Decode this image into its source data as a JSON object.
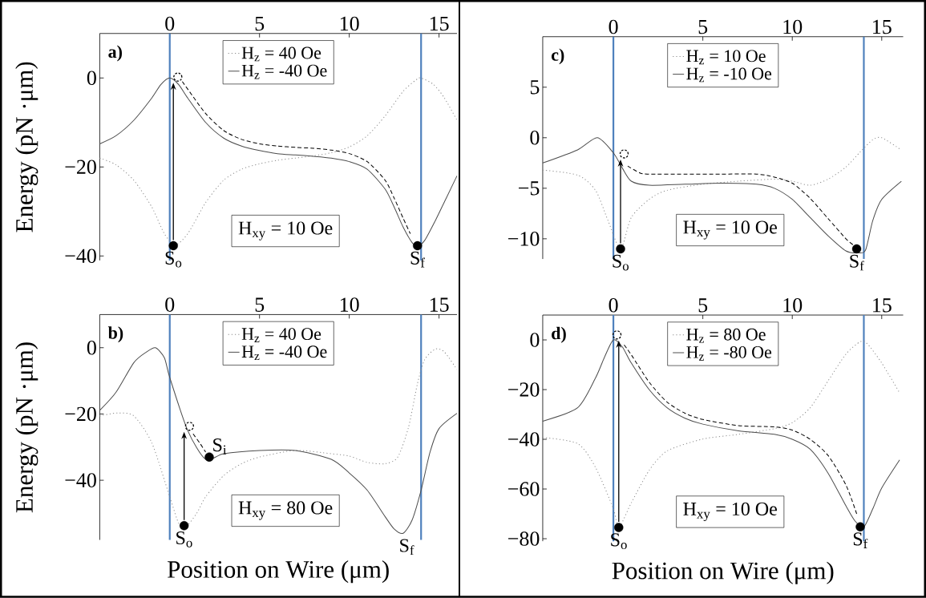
{
  "chart_data": [
    {
      "type": "line",
      "ylabel": "Energy (pN ·μm)",
      "legend": "top",
      "annotations": [
        "a)",
        "H$_{xy}$ = 10 Oe",
        {
          "text": "S$_{o}$",
          "x": 0.2,
          "y": -37.7
        },
        {
          "text": "S$_{f}$",
          "x": 13.8,
          "y": -37.7
        }
      ],
      "xlim": [
        -3.9,
        16
      ],
      "ylim": [
        -41,
        10
      ],
      "xticks": [
        0,
        5,
        10,
        15
      ],
      "yticks": [
        0,
        {
          "value": -20,
          "label": "−20"
        },
        {
          "value": -40,
          "label": "−40"
        }
      ],
      "ref_lines": [
        {
          "axis": "x",
          "value": 0,
          "color": "#4f81bd"
        },
        {
          "axis": "x",
          "value": 14,
          "color": "#4f81bd"
        }
      ],
      "series": [
        {
          "name": "H$_{z}$ = 40 Oe",
          "color": "#8c8c8c",
          "line_style": "dotted",
          "x": [
            -3.9,
            -3,
            -2,
            -1,
            -0.3,
            0.3,
            1,
            2,
            3,
            4,
            5,
            6,
            7,
            8,
            9,
            10,
            11,
            12,
            13,
            13.7,
            14,
            14.7,
            15.3,
            16
          ],
          "values": [
            -18,
            -19.5,
            -23,
            -29,
            -35,
            -37.5,
            -35,
            -28,
            -23,
            -20.5,
            -19.3,
            -18.5,
            -18,
            -17.5,
            -16.8,
            -15.5,
            -13,
            -8.5,
            -3,
            -0.5,
            0,
            -1.5,
            -4.5,
            -9.5
          ]
        },
        {
          "name": "H$_{z}$ = -40 Oe",
          "color": "#4d4d4d",
          "line_style": "solid",
          "x": [
            -3.9,
            -3,
            -2,
            -1,
            -0.5,
            0,
            0.5,
            1,
            2,
            3,
            4,
            5,
            6,
            7,
            8,
            9,
            10,
            11,
            12,
            12.5,
            13,
            13.5,
            13.8,
            14.2,
            14.8,
            15.4,
            16
          ],
          "values": [
            -14.8,
            -13,
            -9.5,
            -4.5,
            -1.5,
            0,
            -1.5,
            -4.5,
            -10,
            -13.5,
            -15.3,
            -16.3,
            -17,
            -17.3,
            -17.6,
            -18,
            -18.8,
            -20.5,
            -25,
            -29,
            -33.5,
            -37,
            -37.8,
            -36.5,
            -32,
            -27,
            -22
          ]
        },
        {
          "type": "scatter",
          "marker": "circle",
          "color": "#000000",
          "x": [
            0.2,
            13.8
          ],
          "values": [
            -37.7,
            -37.7
          ]
        },
        {
          "type": "scatter",
          "marker": "circle",
          "line_style": "dashed",
          "color": "#000000",
          "x": [
            0.45
          ],
          "values": [
            0.2
          ]
        },
        {
          "line_style": "dashed",
          "color": "#000000",
          "x": [
            0.7,
            1,
            2,
            3,
            4,
            5,
            6,
            7,
            8,
            9,
            10,
            11,
            12,
            12.5,
            13,
            13.4
          ],
          "values": [
            -0.8,
            -2.5,
            -8,
            -11.8,
            -13.8,
            -14.8,
            -15.3,
            -15.6,
            -15.8,
            -16.2,
            -17,
            -18.8,
            -23,
            -27,
            -31.5,
            -35
          ]
        }
      ]
    },
    {
      "type": "line",
      "legend": "top",
      "annotations": [
        "c)",
        "H$_{xy}$ = 10 Oe",
        {
          "text": "S$_{o}$",
          "x": 0.4,
          "y": -11
        },
        {
          "text": "S$_{f}$",
          "x": 13.6,
          "y": -11
        }
      ],
      "xlim": [
        -3.95,
        16.2
      ],
      "ylim": [
        -12,
        10
      ],
      "xticks": [
        0,
        5,
        10,
        15
      ],
      "yticks": [
        5,
        0,
        {
          "value": -5,
          "label": "−5"
        },
        {
          "value": -10,
          "label": "−10"
        }
      ],
      "ref_lines": [
        {
          "axis": "x",
          "value": 0,
          "color": "#4f81bd"
        },
        {
          "axis": "x",
          "value": 14,
          "color": "#4f81bd"
        }
      ],
      "series": [
        {
          "name": "H$_{z}$ = 10 Oe",
          "color": "#8c8c8c",
          "line_style": "dotted",
          "x": [
            -3.95,
            -2,
            -1,
            -0.3,
            0.4,
            1,
            2,
            3,
            5,
            7,
            9,
            10,
            11,
            12,
            13,
            13.8,
            14.5,
            15,
            16
          ],
          "values": [
            -3.2,
            -3.7,
            -5.2,
            -8.2,
            -11,
            -7.9,
            -6.1,
            -5.2,
            -4.6,
            -4.3,
            -4.1,
            -4.3,
            -4.7,
            -4.1,
            -2.9,
            -1.4,
            -0.2,
            0,
            -1.1
          ]
        },
        {
          "name": "H$_{z}$ = -10 Oe",
          "color": "#4d4d4d",
          "line_style": "solid",
          "x": [
            -3.95,
            -2,
            -0.9,
            0,
            0.5,
            1,
            2,
            4,
            6,
            8,
            9,
            10,
            11,
            12,
            13,
            13.7,
            14.1,
            14.5,
            15,
            16.1
          ],
          "values": [
            -2.5,
            -1.2,
            0,
            -1.5,
            -3,
            -4.3,
            -4.7,
            -4.6,
            -4.5,
            -4.6,
            -5,
            -6.1,
            -7.9,
            -9.7,
            -11.2,
            -11.4,
            -11.1,
            -8.2,
            -6.1,
            -4.3
          ]
        },
        {
          "type": "scatter",
          "marker": "circle",
          "color": "#000000",
          "x": [
            0.4,
            13.6
          ],
          "values": [
            -11,
            -11
          ]
        },
        {
          "type": "scatter",
          "marker": "circle",
          "line_style": "dashed",
          "color": "#000000",
          "x": [
            0.6
          ],
          "values": [
            -1.6
          ]
        },
        {
          "line_style": "dashed",
          "color": "#000000",
          "x": [
            0.8,
            1.5,
            2,
            4,
            6,
            8,
            9,
            10,
            11,
            12,
            13,
            13.4
          ],
          "values": [
            -2.8,
            -3.5,
            -3.6,
            -3.6,
            -3.6,
            -3.6,
            -3.9,
            -4.5,
            -6,
            -8,
            -10,
            -10.6
          ]
        }
      ]
    },
    {
      "type": "line",
      "ylabel": "Energy (pN ·μm)",
      "xlabel": "Position on Wire (μm)",
      "legend": "top",
      "annotations": [
        "b)",
        "H$_{xy}$ = 80 Oe",
        {
          "text": "S$_{o}$",
          "x": 0.8,
          "y": -53.7
        },
        {
          "text": "S$_{i}$",
          "x": 2.2,
          "y": -33
        },
        {
          "text": "S$_{f}$",
          "x": 13.2,
          "y": -56
        }
      ],
      "xlim": [
        -3.9,
        16
      ],
      "ylim": [
        -58,
        10
      ],
      "xticks": [
        0,
        5,
        10,
        15
      ],
      "yticks": [
        0,
        {
          "value": -20,
          "label": "−20"
        },
        {
          "value": -40,
          "label": "−40"
        }
      ],
      "ref_lines": [
        {
          "axis": "x",
          "value": 0,
          "color": "#4f81bd"
        },
        {
          "axis": "x",
          "value": 14,
          "color": "#4f81bd"
        }
      ],
      "series": [
        {
          "name": "H$_{z}$ = 40 Oe",
          "color": "#8c8c8c",
          "line_style": "dotted",
          "x": [
            -3.9,
            -2.9,
            -2,
            -1,
            0,
            0.5,
            0.9,
            1.5,
            2,
            3,
            4,
            5,
            7,
            9,
            10,
            11,
            12,
            12.7,
            13.3,
            13.8,
            14.2,
            14.8,
            15.3,
            16
          ],
          "values": [
            -20.6,
            -19.7,
            -20.6,
            -28.7,
            -45,
            -53,
            -54,
            -50,
            -45,
            -38.6,
            -35,
            -33,
            -31,
            -32,
            -32.7,
            -34.6,
            -35,
            -33,
            -24,
            -10.8,
            -3.6,
            -0.4,
            -1.3,
            -6.6
          ]
        },
        {
          "name": "H$_{z}$ = -40 Oe",
          "color": "#4d4d4d",
          "line_style": "solid",
          "x": [
            -3.9,
            -3,
            -2,
            -1.3,
            -0.8,
            -0.3,
            0,
            1,
            2,
            3,
            5,
            7,
            9,
            10,
            11,
            12,
            12.5,
            13,
            13.5,
            14,
            14.5,
            15,
            16
          ],
          "values": [
            -18.9,
            -13.5,
            -4.5,
            -1.3,
            0,
            -3,
            -9,
            -25,
            -33.7,
            -32,
            -31,
            -31,
            -33.7,
            -37.8,
            -43,
            -51,
            -54.7,
            -56,
            -52,
            -43,
            -31.5,
            -24.4,
            -19.8
          ]
        },
        {
          "type": "scatter",
          "marker": "circle",
          "color": "#000000",
          "x": [
            0.8,
            2.2
          ],
          "values": [
            -53.7,
            -33
          ]
        },
        {
          "type": "scatter",
          "marker": "circle",
          "line_style": "dashed",
          "color": "#000000",
          "x": [
            1.1
          ],
          "values": [
            -23.7
          ]
        },
        {
          "line_style": "dashed",
          "color": "#000000",
          "x": [
            1.3,
            1.7,
            2.0
          ],
          "values": [
            -26,
            -29,
            -31.5
          ]
        }
      ]
    },
    {
      "type": "line",
      "xlabel": "Position on Wire (μm)",
      "legend": "top",
      "annotations": [
        "d)",
        "H$_{xy}$ = 10 Oe",
        {
          "text": "S$_{o}$",
          "x": 0.3,
          "y": -75.5
        },
        {
          "text": "S$_{f}$",
          "x": 13.8,
          "y": -75.2
        }
      ],
      "xlim": [
        -3.95,
        16.2
      ],
      "ylim": [
        -81,
        10
      ],
      "xticks": [
        0,
        5,
        10,
        15
      ],
      "yticks": [
        0,
        {
          "value": -20,
          "label": "−20"
        },
        {
          "value": -40,
          "label": "−40"
        },
        {
          "value": -60,
          "label": "−60"
        },
        {
          "value": -80,
          "label": "−80"
        }
      ],
      "ref_lines": [
        {
          "axis": "x",
          "value": 0,
          "color": "#4f81bd"
        },
        {
          "axis": "x",
          "value": 14,
          "color": "#4f81bd"
        }
      ],
      "series": [
        {
          "name": "H$_{z}$ = 80 Oe",
          "color": "#8c8c8c",
          "line_style": "dotted",
          "x": [
            -3.95,
            -2,
            -1,
            0,
            0.3,
            1,
            2,
            3,
            5,
            7,
            9,
            10,
            11,
            12,
            13,
            13.8,
            14.2,
            15,
            16
          ],
          "values": [
            -39.3,
            -41.7,
            -51.3,
            -68,
            -75.5,
            -65.6,
            -52.5,
            -44.7,
            -39.9,
            -38,
            -35.7,
            -33.3,
            -27.3,
            -16.5,
            -5.7,
            -0.7,
            -1.6,
            -9.3,
            -21.3
          ]
        },
        {
          "name": "H$_{z}$ = -80 Oe",
          "color": "#4d4d4d",
          "line_style": "solid",
          "x": [
            -3.95,
            -2,
            -1,
            -0.5,
            0,
            0.5,
            1,
            2,
            3,
            4,
            5,
            7,
            9,
            10,
            11,
            12,
            13,
            13.5,
            14,
            14.5,
            15,
            16
          ],
          "values": [
            -32.7,
            -27.3,
            -15.3,
            -7,
            0,
            -2.8,
            -9.3,
            -20,
            -27.3,
            -31.5,
            -33.9,
            -36.6,
            -38,
            -40,
            -44,
            -53.6,
            -66.8,
            -72.8,
            -75.2,
            -68,
            -59.6,
            -48.3
          ]
        },
        {
          "type": "scatter",
          "marker": "circle",
          "color": "#000000",
          "x": [
            0.3,
            13.8
          ],
          "values": [
            -75.5,
            -75.2
          ]
        },
        {
          "type": "scatter",
          "marker": "circle",
          "line_style": "dashed",
          "color": "#000000",
          "x": [
            0.2
          ],
          "values": [
            2
          ]
        },
        {
          "line_style": "dashed",
          "color": "#000000",
          "x": [
            0.6,
            1,
            2,
            3,
            4,
            5,
            7,
            9,
            10,
            11,
            12,
            13,
            13.6
          ],
          "values": [
            -2,
            -6,
            -17,
            -25,
            -29.5,
            -32,
            -34.5,
            -35,
            -36.3,
            -40,
            -46.5,
            -58.4,
            -70
          ]
        }
      ]
    }
  ]
}
